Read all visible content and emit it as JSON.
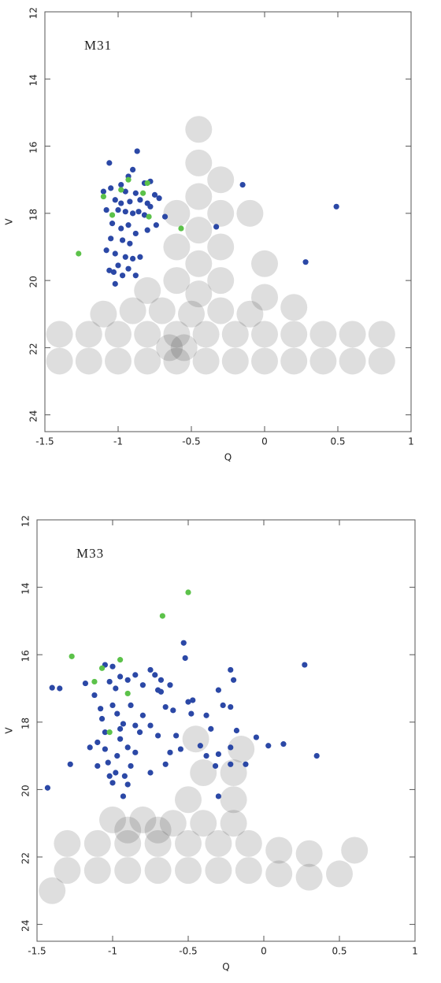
{
  "chart_data": [
    {
      "type": "scatter",
      "title": "M31",
      "xlabel": "Q",
      "ylabel": "V",
      "xlim": [
        -1.5,
        1
      ],
      "ylim": [
        24.5,
        12
      ],
      "xticks": [
        -1.5,
        -1,
        -0.5,
        0,
        0.5,
        1
      ],
      "yticks": [
        12,
        14,
        16,
        18,
        20,
        22,
        24
      ],
      "series": [
        {
          "color": "#000000",
          "x": [
            -1.4,
            -1.2,
            -1.0,
            -0.8,
            -0.6,
            -0.4,
            -0.2,
            0,
            0.2,
            0.4,
            0.6,
            0.8,
            -1.4,
            -1.2,
            -1.0,
            -0.8,
            -0.6,
            -0.4,
            -0.2,
            0,
            0.2,
            0.4,
            0.6,
            0.8,
            -1.1,
            -0.9,
            -0.7,
            -0.5,
            -0.3,
            -0.1,
            -0.45,
            -0.45,
            -0.45,
            -0.45,
            -0.45,
            -0.45,
            -0.6,
            -0.6,
            -0.6,
            -0.3,
            -0.3,
            -0.3,
            -0.3,
            0,
            0,
            0.2,
            -0.1,
            -0.8,
            -0.65,
            -0.55
          ],
          "y": [
            21.6,
            21.6,
            21.6,
            21.6,
            21.6,
            21.6,
            21.6,
            21.6,
            21.6,
            21.6,
            21.6,
            21.6,
            22.4,
            22.4,
            22.4,
            22.4,
            22.4,
            22.4,
            22.4,
            22.4,
            22.4,
            22.4,
            22.4,
            22.4,
            21,
            20.9,
            20.9,
            21,
            20.9,
            21,
            15.5,
            16.5,
            17.5,
            18.5,
            19.5,
            20.4,
            18,
            19,
            20,
            17,
            18,
            19,
            20,
            19.5,
            20.5,
            20.8,
            18,
            20.3,
            22.0,
            22.0
          ]
        },
        {
          "color": "#2b48a6",
          "x": [
            -1.06,
            -0.87,
            -0.9,
            -0.93,
            -0.78,
            -0.82,
            -0.98,
            -1.1,
            -1.05,
            -0.95,
            -0.88,
            -0.75,
            -0.72,
            -1.02,
            -0.98,
            -0.92,
            -0.85,
            -0.8,
            -0.78,
            -1.08,
            -1.0,
            -0.95,
            -0.9,
            -0.86,
            -0.82,
            -0.68,
            -0.74,
            -1.04,
            -0.98,
            -0.93,
            -0.88,
            -0.8,
            -1.05,
            -0.97,
            -0.92,
            -1.08,
            -1.02,
            -0.95,
            -0.9,
            -0.85,
            -1.0,
            -0.93,
            -1.06,
            -1.03,
            -0.97,
            -0.88,
            -1.02,
            -0.15,
            -0.33,
            0.49,
            0.28
          ],
          "y": [
            16.5,
            16.15,
            16.7,
            16.9,
            17.05,
            17.1,
            17.15,
            17.35,
            17.25,
            17.35,
            17.4,
            17.45,
            17.55,
            17.6,
            17.7,
            17.65,
            17.6,
            17.7,
            17.8,
            17.9,
            17.9,
            17.95,
            18.0,
            17.95,
            18.05,
            18.1,
            18.35,
            18.3,
            18.45,
            18.35,
            18.6,
            18.5,
            18.75,
            18.8,
            18.9,
            19.1,
            19.2,
            19.3,
            19.35,
            19.3,
            19.55,
            19.65,
            19.7,
            19.75,
            19.85,
            19.85,
            20.1,
            17.15,
            18.4,
            17.8,
            19.45
          ]
        },
        {
          "color": "#5cc24a",
          "x": [
            -0.93,
            -0.8,
            -0.98,
            -1.1,
            -0.83,
            -1.04,
            -0.79,
            -0.57,
            -1.27
          ],
          "y": [
            17.0,
            17.1,
            17.3,
            17.5,
            17.4,
            18.05,
            18.1,
            18.45,
            19.2
          ]
        }
      ]
    },
    {
      "type": "scatter",
      "title": "M33",
      "xlabel": "Q",
      "ylabel": "V",
      "xlim": [
        -1.5,
        1
      ],
      "ylim": [
        24.5,
        12
      ],
      "xticks": [
        -1.5,
        -1,
        -0.5,
        0,
        0.5,
        1
      ],
      "yticks": [
        12,
        14,
        16,
        18,
        20,
        22,
        24
      ],
      "series": [
        {
          "color": "#000000",
          "x": [
            -1.3,
            -1.1,
            -0.9,
            -0.7,
            -0.5,
            -0.3,
            -0.1,
            0.1,
            0.3,
            -1.3,
            -1.1,
            -0.9,
            -0.7,
            -0.5,
            -0.3,
            -0.1,
            0.1,
            0.3,
            -1.0,
            -0.8,
            -0.6,
            -0.4,
            -0.2,
            -0.2,
            -0.2,
            -0.15,
            -0.4,
            -0.45,
            -0.5,
            -0.9,
            -0.7,
            0.5,
            -1.4,
            0.6
          ],
          "y": [
            21.6,
            21.6,
            21.6,
            21.6,
            21.6,
            21.6,
            21.6,
            21.8,
            21.9,
            22.4,
            22.4,
            22.4,
            22.4,
            22.4,
            22.4,
            22.4,
            22.5,
            22.6,
            20.9,
            20.9,
            21,
            21,
            19.5,
            20.3,
            21,
            18.8,
            19.5,
            18.5,
            20.3,
            21.2,
            21.2,
            22.5,
            23,
            21.8
          ]
        },
        {
          "color": "#2b48a6",
          "x": [
            -1.43,
            -1.4,
            -1.35,
            -1.28,
            -1.18,
            -1.15,
            -1.12,
            -1.05,
            -1.0,
            -1.02,
            -0.98,
            -0.95,
            -0.9,
            -0.85,
            -0.8,
            -0.75,
            -0.72,
            -0.7,
            -0.68,
            -0.62,
            -0.53,
            -0.52,
            -0.5,
            -0.47,
            -0.48,
            -0.42,
            -0.38,
            -0.35,
            -0.3,
            -0.3,
            -0.27,
            -0.22,
            -0.2,
            -0.22,
            -0.22,
            -0.18,
            -0.12,
            -0.05,
            0.03,
            0.13,
            0.27,
            0.35,
            -0.3,
            -0.32,
            -0.22,
            -0.38,
            -0.58,
            -0.62,
            -0.65,
            -0.75,
            -0.7,
            -0.75,
            -0.8,
            -0.82,
            -0.85,
            -0.88,
            -0.9,
            -0.93,
            -0.93,
            -0.95,
            -0.97,
            -0.98,
            -1.0,
            -1.02,
            -1.03,
            -1.05,
            -1.05,
            -1.07,
            -1.08,
            -1.1,
            -1.1,
            -1.0,
            -0.97,
            -0.95,
            -0.9,
            -0.92,
            -0.88,
            -0.85,
            -0.6,
            -0.65,
            -0.68,
            -0.55
          ],
          "y": [
            19.95,
            16.98,
            17.0,
            19.25,
            16.85,
            18.75,
            17.2,
            16.3,
            16.35,
            16.8,
            17.0,
            16.65,
            16.75,
            16.6,
            16.9,
            16.45,
            16.6,
            17.05,
            17.1,
            16.9,
            15.65,
            16.1,
            17.4,
            17.35,
            17.75,
            18.7,
            17.8,
            18.2,
            17.05,
            18.95,
            17.5,
            16.45,
            16.75,
            17.55,
            18.75,
            18.25,
            19.25,
            18.45,
            18.7,
            18.65,
            16.3,
            19.0,
            20.2,
            19.3,
            19.25,
            19.0,
            18.4,
            18.9,
            19.25,
            19.5,
            18.4,
            18.1,
            17.8,
            18.3,
            18.9,
            19.3,
            19.85,
            20.2,
            18.05,
            18.5,
            19.0,
            19.5,
            19.8,
            19.6,
            19.2,
            18.8,
            18.3,
            17.9,
            17.6,
            18.6,
            19.3,
            17.5,
            17.75,
            18.2,
            18.75,
            19.6,
            17.5,
            18.1,
            17.65,
            17.55,
            16.75,
            18.8
          ]
        },
        {
          "color": "#5cc24a",
          "x": [
            -0.5,
            -0.67,
            -1.27,
            -0.95,
            -1.07,
            -1.12,
            -0.9,
            -1.02
          ],
          "y": [
            14.15,
            14.85,
            16.05,
            16.15,
            16.4,
            16.8,
            17.15,
            18.3
          ]
        }
      ]
    }
  ]
}
